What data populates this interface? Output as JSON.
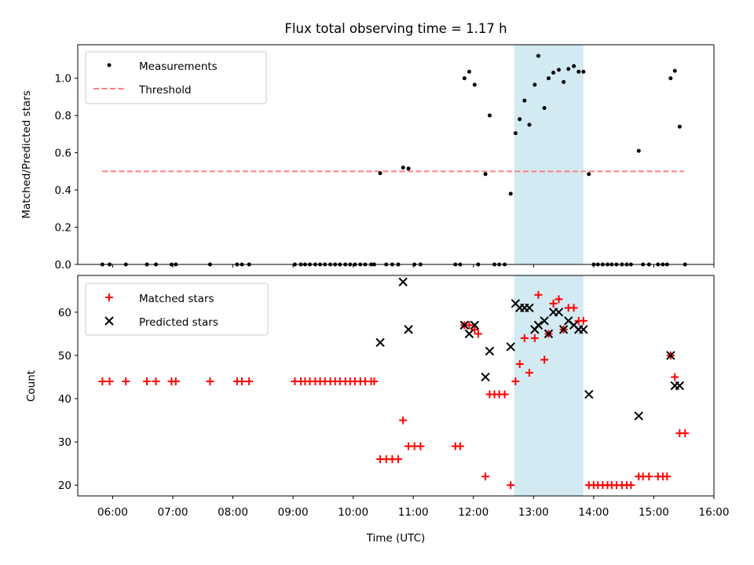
{
  "chart_data": [
    {
      "type": "scatter",
      "title": "Flux total observing time = 1.17 h",
      "xlabel": "",
      "ylabel": "Matched/Predicted stars",
      "x_type": "time_hours_utc",
      "xlim": [
        5.42,
        16.0
      ],
      "ylim": [
        0,
        1.18
      ],
      "yticks": [
        "0.0",
        "0.2",
        "0.4",
        "0.6",
        "0.8",
        "1.0"
      ],
      "shaded_region": {
        "x": [
          12.68,
          13.83
        ],
        "color": "#add8e6"
      },
      "legend_position": "upper-left",
      "threshold": {
        "name": "Threshold",
        "y": 0.5,
        "x": [
          5.83,
          15.5
        ],
        "color": "#ff7f7f"
      },
      "series": [
        {
          "name": "Measurements",
          "color": "#000000",
          "points": [
            [
              5.83,
              0
            ],
            [
              5.95,
              0
            ],
            [
              6.22,
              0
            ],
            [
              6.57,
              0
            ],
            [
              6.72,
              0
            ],
            [
              6.98,
              0
            ],
            [
              7.05,
              0
            ],
            [
              7.62,
              0
            ],
            [
              8.07,
              0
            ],
            [
              8.15,
              0
            ],
            [
              8.27,
              0
            ],
            [
              9.03,
              0
            ],
            [
              9.13,
              0
            ],
            [
              9.2,
              0
            ],
            [
              9.28,
              0
            ],
            [
              9.37,
              0
            ],
            [
              9.45,
              0
            ],
            [
              9.53,
              0
            ],
            [
              9.62,
              0
            ],
            [
              9.7,
              0
            ],
            [
              9.78,
              0
            ],
            [
              9.87,
              0
            ],
            [
              9.95,
              0
            ],
            [
              10.03,
              0
            ],
            [
              10.12,
              0
            ],
            [
              10.2,
              0
            ],
            [
              10.3,
              0
            ],
            [
              10.35,
              0
            ],
            [
              10.45,
              0.49
            ],
            [
              10.55,
              0
            ],
            [
              10.65,
              0
            ],
            [
              10.75,
              0
            ],
            [
              10.83,
              0.52
            ],
            [
              10.92,
              0.515
            ],
            [
              11.02,
              0
            ],
            [
              11.12,
              0
            ],
            [
              11.7,
              0
            ],
            [
              11.78,
              0
            ],
            [
              11.85,
              1.0
            ],
            [
              11.93,
              1.035
            ],
            [
              12.02,
              0.965
            ],
            [
              12.08,
              0
            ],
            [
              12.2,
              0.485
            ],
            [
              12.27,
              0.8
            ],
            [
              12.35,
              0
            ],
            [
              12.43,
              0
            ],
            [
              12.52,
              0
            ],
            [
              12.62,
              0.38
            ],
            [
              12.7,
              0.705
            ],
            [
              12.77,
              0.78
            ],
            [
              12.85,
              0.88
            ],
            [
              12.93,
              0.75
            ],
            [
              13.02,
              0.965
            ],
            [
              13.08,
              1.12
            ],
            [
              13.18,
              0.84
            ],
            [
              13.25,
              1.0
            ],
            [
              13.33,
              1.03
            ],
            [
              13.42,
              1.045
            ],
            [
              13.5,
              0.98
            ],
            [
              13.58,
              1.05
            ],
            [
              13.67,
              1.065
            ],
            [
              13.75,
              1.035
            ],
            [
              13.83,
              1.035
            ],
            [
              13.92,
              0.485
            ],
            [
              14.0,
              0
            ],
            [
              14.07,
              0
            ],
            [
              14.15,
              0
            ],
            [
              14.23,
              0
            ],
            [
              14.3,
              0
            ],
            [
              14.38,
              0
            ],
            [
              14.47,
              0
            ],
            [
              14.55,
              0
            ],
            [
              14.62,
              0
            ],
            [
              14.75,
              0.61
            ],
            [
              14.82,
              0
            ],
            [
              14.92,
              0
            ],
            [
              15.07,
              0
            ],
            [
              15.15,
              0
            ],
            [
              15.22,
              0
            ],
            [
              15.28,
              1.0
            ],
            [
              15.35,
              1.04
            ],
            [
              15.43,
              0.74
            ],
            [
              15.52,
              0
            ]
          ]
        }
      ]
    },
    {
      "type": "scatter",
      "title": "",
      "xlabel": "Time (UTC)",
      "ylabel": "Count",
      "x_type": "time_hours_utc",
      "xlim": [
        5.42,
        16.0
      ],
      "ylim": [
        17.5,
        68.5
      ],
      "yticks": [
        "20",
        "30",
        "40",
        "50",
        "60"
      ],
      "xticks": [
        "06:00",
        "07:00",
        "08:00",
        "09:00",
        "10:00",
        "11:00",
        "12:00",
        "13:00",
        "14:00",
        "15:00",
        "16:00"
      ],
      "shaded_region": {
        "x": [
          12.68,
          13.83
        ],
        "color": "#add8e6"
      },
      "legend_position": "upper-left",
      "series": [
        {
          "name": "Matched stars",
          "marker": "plus",
          "color": "#ff0000",
          "points": [
            [
              5.83,
              44
            ],
            [
              5.95,
              44
            ],
            [
              6.22,
              44
            ],
            [
              6.57,
              44
            ],
            [
              6.72,
              44
            ],
            [
              6.98,
              44
            ],
            [
              7.05,
              44
            ],
            [
              7.62,
              44
            ],
            [
              8.07,
              44
            ],
            [
              8.15,
              44
            ],
            [
              8.27,
              44
            ],
            [
              9.03,
              44
            ],
            [
              9.13,
              44
            ],
            [
              9.2,
              44
            ],
            [
              9.28,
              44
            ],
            [
              9.37,
              44
            ],
            [
              9.45,
              44
            ],
            [
              9.53,
              44
            ],
            [
              9.62,
              44
            ],
            [
              9.7,
              44
            ],
            [
              9.78,
              44
            ],
            [
              9.87,
              44
            ],
            [
              9.95,
              44
            ],
            [
              10.03,
              44
            ],
            [
              10.12,
              44
            ],
            [
              10.2,
              44
            ],
            [
              10.3,
              44
            ],
            [
              10.35,
              44
            ],
            [
              10.45,
              26
            ],
            [
              10.55,
              26
            ],
            [
              10.65,
              26
            ],
            [
              10.75,
              26
            ],
            [
              10.83,
              35
            ],
            [
              10.92,
              29
            ],
            [
              11.02,
              29
            ],
            [
              11.12,
              29
            ],
            [
              11.7,
              29
            ],
            [
              11.78,
              29
            ],
            [
              11.85,
              57
            ],
            [
              11.93,
              57
            ],
            [
              12.02,
              56
            ],
            [
              12.08,
              55
            ],
            [
              12.2,
              22
            ],
            [
              12.27,
              41
            ],
            [
              12.35,
              41
            ],
            [
              12.43,
              41
            ],
            [
              12.52,
              41
            ],
            [
              12.62,
              20
            ],
            [
              12.7,
              44
            ],
            [
              12.77,
              48
            ],
            [
              12.85,
              54
            ],
            [
              12.93,
              46
            ],
            [
              13.02,
              54
            ],
            [
              13.08,
              64
            ],
            [
              13.18,
              49
            ],
            [
              13.25,
              55
            ],
            [
              13.33,
              62
            ],
            [
              13.42,
              63
            ],
            [
              13.5,
              56
            ],
            [
              13.58,
              61
            ],
            [
              13.67,
              61
            ],
            [
              13.75,
              58
            ],
            [
              13.83,
              58
            ],
            [
              13.92,
              20
            ],
            [
              14.0,
              20
            ],
            [
              14.07,
              20
            ],
            [
              14.15,
              20
            ],
            [
              14.23,
              20
            ],
            [
              14.3,
              20
            ],
            [
              14.38,
              20
            ],
            [
              14.47,
              20
            ],
            [
              14.55,
              20
            ],
            [
              14.62,
              20
            ],
            [
              14.75,
              22
            ],
            [
              14.82,
              22
            ],
            [
              14.92,
              22
            ],
            [
              15.07,
              22
            ],
            [
              15.15,
              22
            ],
            [
              15.22,
              22
            ],
            [
              15.28,
              50
            ],
            [
              15.35,
              45
            ],
            [
              15.43,
              32
            ],
            [
              15.52,
              32
            ]
          ]
        },
        {
          "name": "Predicted stars",
          "marker": "x",
          "color": "#000000",
          "points": [
            [
              10.45,
              53
            ],
            [
              10.83,
              67
            ],
            [
              10.92,
              56
            ],
            [
              11.85,
              57
            ],
            [
              11.93,
              55
            ],
            [
              12.02,
              57
            ],
            [
              12.2,
              45
            ],
            [
              12.27,
              51
            ],
            [
              12.62,
              52
            ],
            [
              12.7,
              62
            ],
            [
              12.77,
              61
            ],
            [
              12.85,
              61
            ],
            [
              12.93,
              61
            ],
            [
              13.02,
              56
            ],
            [
              13.08,
              57
            ],
            [
              13.18,
              58
            ],
            [
              13.25,
              55
            ],
            [
              13.33,
              60
            ],
            [
              13.42,
              60
            ],
            [
              13.5,
              56
            ],
            [
              13.58,
              58
            ],
            [
              13.67,
              57
            ],
            [
              13.75,
              56
            ],
            [
              13.83,
              56
            ],
            [
              13.92,
              41
            ],
            [
              14.75,
              36
            ],
            [
              15.28,
              50
            ],
            [
              15.35,
              43
            ],
            [
              15.43,
              43
            ]
          ]
        }
      ]
    }
  ]
}
